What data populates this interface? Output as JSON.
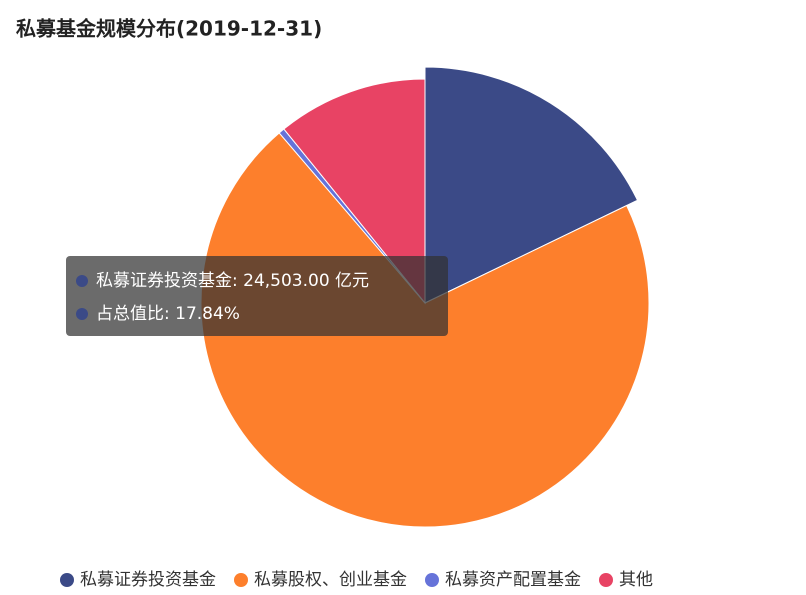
{
  "chart_data": {
    "type": "pie",
    "title": "私募基金规模分布(2019-12-31)",
    "categories": [
      "私募证券投资基金",
      "私募股权、创业基金",
      "私募资产配置基金",
      "其他"
    ],
    "values": [
      24503,
      97400,
      600,
      14900
    ],
    "colors": [
      "#3b4a87",
      "#fd7f2c",
      "#6673d9",
      "#e84364"
    ],
    "highlighted": 0,
    "tooltip": [
      "私募证券投资基金: 24,503.00 亿元",
      "占总值比: 17.84%"
    ],
    "legend": "bottom"
  }
}
